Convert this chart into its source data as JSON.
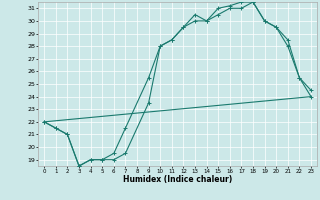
{
  "xlabel": "Humidex (Indice chaleur)",
  "bg_color": "#cce8e8",
  "line_color": "#1a7a6e",
  "xlim": [
    -0.5,
    23.5
  ],
  "ylim": [
    18.5,
    31.5
  ],
  "yticks": [
    19,
    20,
    21,
    22,
    23,
    24,
    25,
    26,
    27,
    28,
    29,
    30,
    31
  ],
  "xticks": [
    0,
    1,
    2,
    3,
    4,
    5,
    6,
    7,
    8,
    9,
    10,
    11,
    12,
    13,
    14,
    15,
    16,
    17,
    18,
    19,
    20,
    21,
    22,
    23
  ],
  "line1_x": [
    0,
    1,
    2,
    3,
    4,
    5,
    6,
    7,
    9,
    10,
    11,
    12,
    13,
    14,
    15,
    16,
    17,
    18,
    19,
    20,
    21,
    22,
    23
  ],
  "line1_y": [
    22,
    21.5,
    21,
    18.5,
    19,
    19,
    19,
    19.5,
    23.5,
    28.0,
    28.5,
    29.5,
    30.0,
    30.0,
    30.5,
    31.0,
    31.0,
    31.5,
    30.0,
    29.5,
    28.5,
    25.5,
    24.0
  ],
  "line2_x": [
    0,
    1,
    2,
    3,
    4,
    5,
    6,
    7,
    9,
    10,
    11,
    12,
    13,
    14,
    15,
    16,
    17,
    18,
    19,
    20,
    21,
    22,
    23
  ],
  "line2_y": [
    22,
    21.5,
    21,
    18.5,
    19,
    19,
    19.5,
    21.5,
    25.5,
    28.0,
    28.5,
    29.5,
    30.5,
    30.0,
    31.0,
    31.2,
    31.5,
    31.5,
    30.0,
    29.5,
    28.0,
    25.5,
    24.5
  ],
  "line3_x": [
    0,
    23
  ],
  "line3_y": [
    22,
    24.0
  ]
}
